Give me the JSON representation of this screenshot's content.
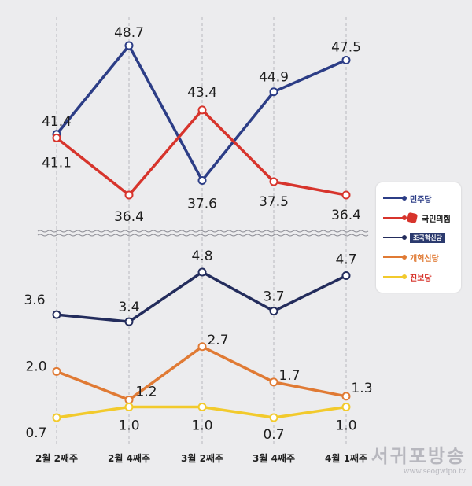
{
  "chart_data": [
    {
      "type": "line",
      "categories": [
        "2월 2째주",
        "2월 4째주",
        "3월 2째주",
        "3월 4째주",
        "4월 1째주"
      ],
      "series": [
        {
          "name": "민주당",
          "color": "#2c3d86",
          "values": [
            41.4,
            48.7,
            37.6,
            44.9,
            47.5
          ]
        },
        {
          "name": "국민의힘",
          "color": "#d7342c",
          "values": [
            41.1,
            36.4,
            43.4,
            37.5,
            36.4
          ]
        }
      ],
      "grid": "vertical dashed"
    },
    {
      "type": "line",
      "categories": [
        "2월 2째주",
        "2월 4째주",
        "3월 2째주",
        "3월 4째주",
        "4월 1째주"
      ],
      "series": [
        {
          "name": "조국혁신당",
          "color": "#232c5c",
          "values": [
            3.6,
            3.4,
            4.8,
            3.7,
            4.7
          ]
        },
        {
          "name": "개혁신당",
          "color": "#e07a34",
          "values": [
            2.0,
            1.2,
            2.7,
            1.7,
            1.3
          ]
        },
        {
          "name": "진보당",
          "color": "#f2ca2c",
          "values": [
            0.7,
            1.0,
            1.0,
            0.7,
            1.0
          ]
        }
      ],
      "grid": "vertical dashed"
    }
  ],
  "legend": {
    "placement": "right",
    "items": [
      {
        "label": "민주당",
        "color": "#2c3d86",
        "label_color": "#2c3d86"
      },
      {
        "label": "국민의힘",
        "color": "#d7342c",
        "label_color": "#111111"
      },
      {
        "label": "조국혁신당",
        "color": "#232c5c",
        "label_color": "#ffffff"
      },
      {
        "label": "개혁신당",
        "color": "#e07a34",
        "label_color": "#e07a34"
      },
      {
        "label": "진보당",
        "color": "#f2ca2c",
        "label_color": "#d7342c"
      }
    ]
  },
  "watermark": {
    "name": "서귀포방송",
    "url": "www.seogwipo.tv"
  }
}
